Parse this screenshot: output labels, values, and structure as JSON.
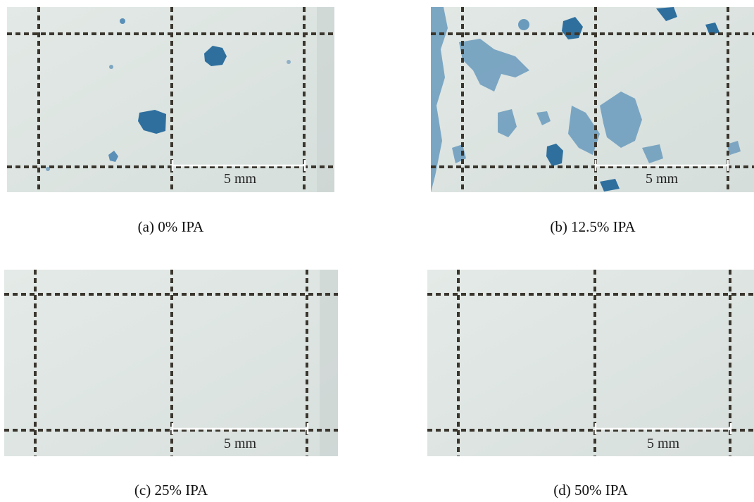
{
  "panels": [
    {
      "caption": "(a) 0% IPA",
      "scale_label": "5 mm"
    },
    {
      "caption": "(b) 12.5% IPA",
      "scale_label": "5 mm"
    },
    {
      "caption": "(c) 25% IPA",
      "scale_label": "5 mm"
    },
    {
      "caption": "(d) 50% IPA",
      "scale_label": "5 mm"
    }
  ],
  "colors": {
    "background": "#dfe6e3",
    "grid": "#3a362e",
    "stain": "#2e6f9e",
    "light_stain": "#6a9bbd",
    "scale_bar": "#ffffff"
  }
}
